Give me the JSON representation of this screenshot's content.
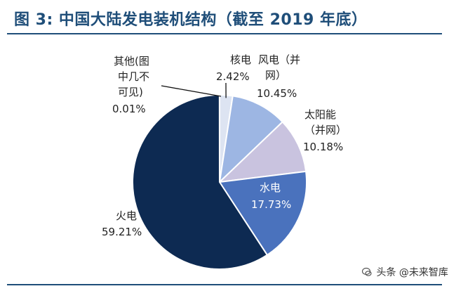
{
  "header": {
    "title": "图 3: 中国大陆发电装机结构（截至 2019 年底）"
  },
  "chart_data": {
    "type": "pie",
    "title": "图 3: 中国大陆发电装机结构（截至 2019 年底）",
    "slices": [
      {
        "label": [
          "核电"
        ],
        "value": 2.42,
        "value_text": "2.42%",
        "color": "#dde4f2"
      },
      {
        "label": [
          "风电（并",
          "网）"
        ],
        "value": 10.45,
        "value_text": "10.45%",
        "color": "#9db6e3"
      },
      {
        "label": [
          "太阳能",
          "（并网）"
        ],
        "value": 10.18,
        "value_text": "10.18%",
        "color": "#c9c3df"
      },
      {
        "label": [
          "水电"
        ],
        "value": 17.73,
        "value_text": "17.73%",
        "color": "#4a72bd"
      },
      {
        "label": [
          "火电"
        ],
        "value": 59.21,
        "value_text": "59.21%",
        "color": "#0d2a52"
      },
      {
        "label": [
          "其他(图",
          "中几不",
          "可见)"
        ],
        "value": 0.01,
        "value_text": "0.01%",
        "color": "#cfd8ea"
      }
    ]
  },
  "watermark": {
    "icon": "wechat-icon",
    "text": "头条 @未来智库"
  }
}
